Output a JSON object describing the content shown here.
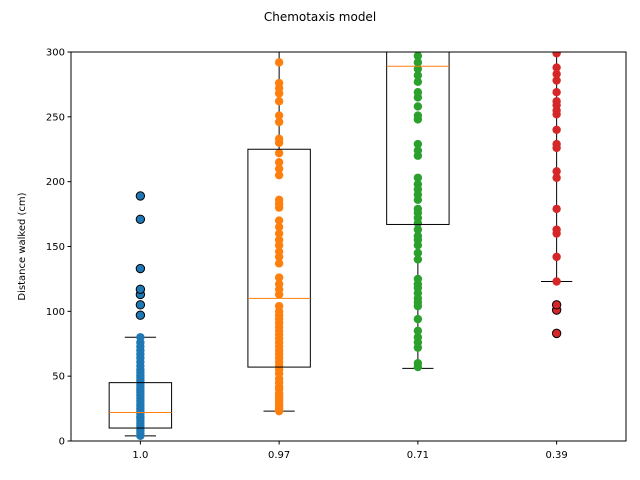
{
  "chart_data": {
    "type": "box-strip",
    "title": "Chemotaxis model",
    "xlabel": "",
    "ylabel": "Distance walked (cm)",
    "ylim": [
      0,
      300
    ],
    "yticks": [
      0,
      50,
      100,
      150,
      200,
      250,
      300
    ],
    "categories": [
      "1.0",
      "0.97",
      "0.71",
      "0.39"
    ],
    "grid": false,
    "boxes": [
      {
        "q1": 10,
        "median": 22,
        "q3": 45,
        "whisker_low": 4,
        "whisker_high": 80
      },
      {
        "q1": 57,
        "median": 110,
        "q3": 225,
        "whisker_low": 23,
        "whisker_high": 300
      },
      {
        "q1": 167,
        "median": 289,
        "q3": 300,
        "whisker_low": 56,
        "whisker_high": 300
      },
      {
        "q1": 300,
        "median": 300,
        "q3": 300,
        "whisker_low": 123,
        "whisker_high": 300
      }
    ],
    "series": [
      {
        "color": "#1f77b4",
        "values": [
          4,
          6,
          8,
          10,
          12,
          14,
          16,
          18,
          19,
          21,
          23,
          25,
          27,
          29,
          31,
          33,
          35,
          37,
          39,
          41,
          43,
          45,
          47,
          49,
          51,
          53,
          55,
          58,
          61,
          64,
          67,
          70,
          73,
          76,
          80
        ]
      },
      {
        "color": "#ff7f0e",
        "values": [
          23,
          25,
          27,
          29,
          31,
          33,
          35,
          37,
          40,
          42,
          45,
          48,
          52,
          55,
          58,
          61,
          64,
          67,
          70,
          73,
          76,
          79,
          82,
          85,
          88,
          91,
          94,
          97,
          100,
          104,
          113,
          117,
          121,
          126,
          137,
          142,
          146,
          151,
          155,
          160,
          165,
          170,
          180,
          183,
          186,
          205,
          210,
          215,
          222,
          230,
          233,
          246,
          251,
          262,
          268,
          272,
          276,
          292
        ]
      },
      {
        "color": "#2ca02c",
        "values": [
          57,
          60,
          72,
          76,
          80,
          85,
          94,
          104,
          107,
          110,
          114,
          118,
          121,
          125,
          140,
          145,
          151,
          155,
          158,
          163,
          168,
          172,
          176,
          179,
          186,
          190,
          194,
          198,
          203,
          220,
          224,
          229,
          248,
          251,
          258,
          265,
          269,
          277,
          282,
          287,
          292,
          297
        ]
      },
      {
        "color": "#d62728",
        "values": [
          123,
          142,
          160,
          163,
          179,
          203,
          208,
          226,
          229,
          240,
          252,
          255,
          259,
          262,
          269,
          278,
          283,
          288,
          299
        ]
      }
    ],
    "outliers": [
      {
        "category": 0,
        "values": [
          97,
          105,
          113,
          117,
          133,
          171,
          189
        ]
      },
      {
        "category": 3,
        "values": [
          83,
          101,
          105
        ]
      }
    ]
  }
}
